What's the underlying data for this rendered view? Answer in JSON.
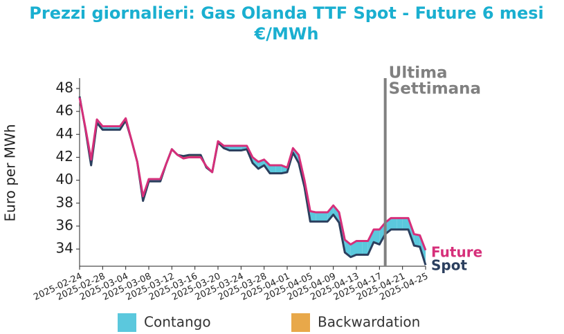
{
  "chart_data": {
    "type": "line",
    "title": [
      "Prezzi giornalieri: Gas Olanda TTF Spot - Future 6 mesi",
      "€/MWh"
    ],
    "ylabel": "Euro per MWh",
    "x": [
      "2025-02-24",
      "2025-02-25",
      "2025-02-26",
      "2025-02-27",
      "2025-02-28",
      "2025-03-01",
      "2025-03-02",
      "2025-03-03",
      "2025-03-04",
      "2025-03-05",
      "2025-03-06",
      "2025-03-07",
      "2025-03-08",
      "2025-03-09",
      "2025-03-10",
      "2025-03-11",
      "2025-03-12",
      "2025-03-13",
      "2025-03-14",
      "2025-03-15",
      "2025-03-16",
      "2025-03-17",
      "2025-03-18",
      "2025-03-19",
      "2025-03-20",
      "2025-03-21",
      "2025-03-22",
      "2025-03-23",
      "2025-03-24",
      "2025-03-25",
      "2025-03-26",
      "2025-03-27",
      "2025-03-28",
      "2025-03-29",
      "2025-03-30",
      "2025-03-31",
      "2025-04-01",
      "2025-04-02",
      "2025-04-03",
      "2025-04-04",
      "2025-04-05",
      "2025-04-06",
      "2025-04-07",
      "2025-04-08",
      "2025-04-09",
      "2025-04-10",
      "2025-04-11",
      "2025-04-12",
      "2025-04-13",
      "2025-04-14",
      "2025-04-15",
      "2025-04-16",
      "2025-04-17",
      "2025-04-18",
      "2025-04-19",
      "2025-04-20",
      "2025-04-21",
      "2025-04-22",
      "2025-04-23",
      "2025-04-24",
      "2025-04-25"
    ],
    "series": [
      {
        "name": "Spot",
        "color": "#2b3f5e",
        "values": [
          47.3,
          44.5,
          41.3,
          45.0,
          44.4,
          44.4,
          44.4,
          44.4,
          45.2,
          43.5,
          41.6,
          38.2,
          39.9,
          39.9,
          39.9,
          41.4,
          42.7,
          42.2,
          42.1,
          42.2,
          42.2,
          42.2,
          41.1,
          40.7,
          43.3,
          42.8,
          42.6,
          42.6,
          42.6,
          42.7,
          41.5,
          41.0,
          41.3,
          40.6,
          40.6,
          40.6,
          40.7,
          42.4,
          41.5,
          39.4,
          36.4,
          36.4,
          36.4,
          36.4,
          37.0,
          36.3,
          33.7,
          33.3,
          33.5,
          33.5,
          33.5,
          34.6,
          34.4,
          35.3,
          35.7,
          35.7,
          35.7,
          35.7,
          34.3,
          34.2,
          32.6
        ]
      },
      {
        "name": "Future",
        "color": "#d62f7a",
        "values": [
          47.2,
          44.6,
          41.8,
          45.3,
          44.7,
          44.7,
          44.7,
          44.7,
          45.4,
          43.5,
          41.6,
          38.6,
          40.1,
          40.1,
          40.1,
          41.4,
          42.7,
          42.2,
          41.9,
          42.0,
          42.0,
          42.0,
          41.2,
          40.7,
          43.4,
          43.0,
          43.0,
          43.0,
          43.0,
          43.0,
          42.0,
          41.6,
          41.8,
          41.3,
          41.3,
          41.3,
          41.1,
          42.8,
          42.2,
          40.0,
          37.3,
          37.2,
          37.2,
          37.2,
          37.8,
          37.2,
          34.8,
          34.4,
          34.7,
          34.7,
          34.7,
          35.7,
          35.7,
          36.3,
          36.7,
          36.7,
          36.7,
          36.7,
          35.3,
          35.2,
          33.9
        ]
      }
    ],
    "fill_legend": [
      {
        "name": "Contango",
        "color": "#5bc8dd"
      },
      {
        "name": "Backwardation",
        "color": "#e8a84a"
      }
    ],
    "vline": {
      "x": "2025-04-18",
      "label": [
        "Ultima",
        "Settimana"
      ],
      "color": "#808080"
    },
    "xlim": [
      "2025-02-24",
      "2025-04-25"
    ],
    "xticks": [
      "2025-02-24",
      "2025-02-28",
      "2025-03-04",
      "2025-03-08",
      "2025-03-12",
      "2025-03-16",
      "2025-03-20",
      "2025-03-24",
      "2025-03-28",
      "2025-04-01",
      "2025-04-05",
      "2025-04-09",
      "2025-04-13",
      "2025-04-17",
      "2025-04-21",
      "2025-04-25"
    ],
    "ylim": [
      32.5,
      48.9
    ],
    "yticks": [
      34,
      36,
      38,
      40,
      42,
      44,
      46,
      48
    ],
    "grid": false
  }
}
